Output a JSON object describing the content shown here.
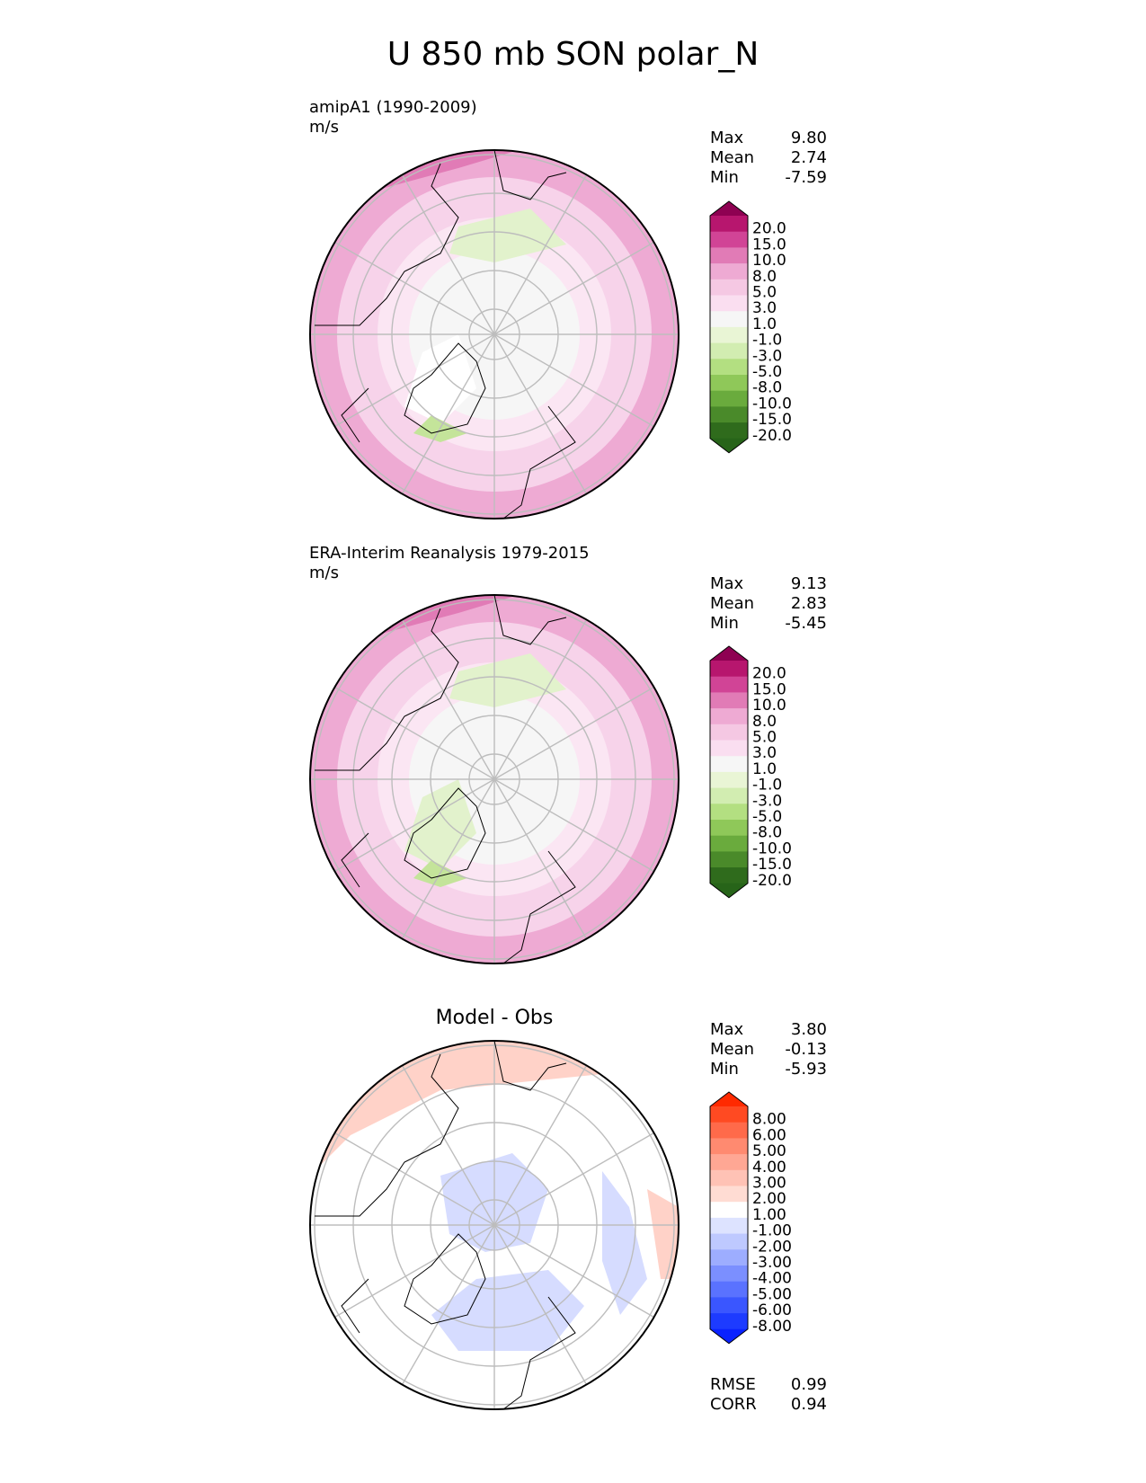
{
  "page_title": "U 850 mb SON polar_N",
  "panels": [
    {
      "title_line1": "amipA1 (1990-2009)",
      "title_line2": "m/s",
      "stats": [
        {
          "label": "Max",
          "value": "9.80"
        },
        {
          "label": "Mean",
          "value": "2.74"
        },
        {
          "label": "Min",
          "value": "-7.59"
        }
      ]
    },
    {
      "title_line1": "ERA-Interim Reanalysis 1979-2015",
      "title_line2": "m/s",
      "stats": [
        {
          "label": "Max",
          "value": "9.13"
        },
        {
          "label": "Mean",
          "value": "2.83"
        },
        {
          "label": "Min",
          "value": "-5.45"
        }
      ]
    },
    {
      "center_title": "Model - Obs",
      "stats": [
        {
          "label": "Max",
          "value": "3.80"
        },
        {
          "label": "Mean",
          "value": "-0.13"
        },
        {
          "label": "Min",
          "value": "-5.93"
        }
      ],
      "metrics": [
        {
          "label": "RMSE",
          "value": "0.99"
        },
        {
          "label": "CORR",
          "value": "0.94"
        }
      ]
    }
  ],
  "colorbars": {
    "field": {
      "labels": [
        "20.0",
        "15.0",
        "10.0",
        "8.0",
        "5.0",
        "3.0",
        "1.0",
        "-1.0",
        "-3.0",
        "-5.0",
        "-8.0",
        "-10.0",
        "-15.0",
        "-20.0"
      ],
      "colors": [
        "#8e0152",
        "#b7166e",
        "#d14496",
        "#e17bb6",
        "#eeaad3",
        "#f5c8e3",
        "#fadef0",
        "#f6f6f6",
        "#e9f5d5",
        "#d2edb1",
        "#b3df81",
        "#8fc859",
        "#6aab3d",
        "#4a8a2a",
        "#2f6b1c",
        "#276419"
      ]
    },
    "diff": {
      "labels": [
        "8.00",
        "6.00",
        "5.00",
        "4.00",
        "3.00",
        "2.00",
        "1.00",
        "-1.00",
        "-2.00",
        "-3.00",
        "-4.00",
        "-5.00",
        "-6.00",
        "-8.00"
      ],
      "colors": [
        "#ff2a00",
        "#ff4a22",
        "#ff6a4a",
        "#ff8a70",
        "#ffa794",
        "#ffc2b5",
        "#ffdcd3",
        "#ffffff",
        "#dde3ff",
        "#bec9ff",
        "#9dadff",
        "#7b8fff",
        "#5a72ff",
        "#3a56ff",
        "#1d3bff",
        "#0a22ff"
      ]
    }
  },
  "map_colors": {
    "pink_light": "#f7d3ea",
    "pink_mid": "#eeaad3",
    "pink_dark": "#e17bb6",
    "near_zero": "#f6f6f6",
    "green_light": "#e2f2cc",
    "green_mid": "#c4e49a",
    "diff_red": "#ffd2c8",
    "diff_blue": "#d6dcff"
  }
}
